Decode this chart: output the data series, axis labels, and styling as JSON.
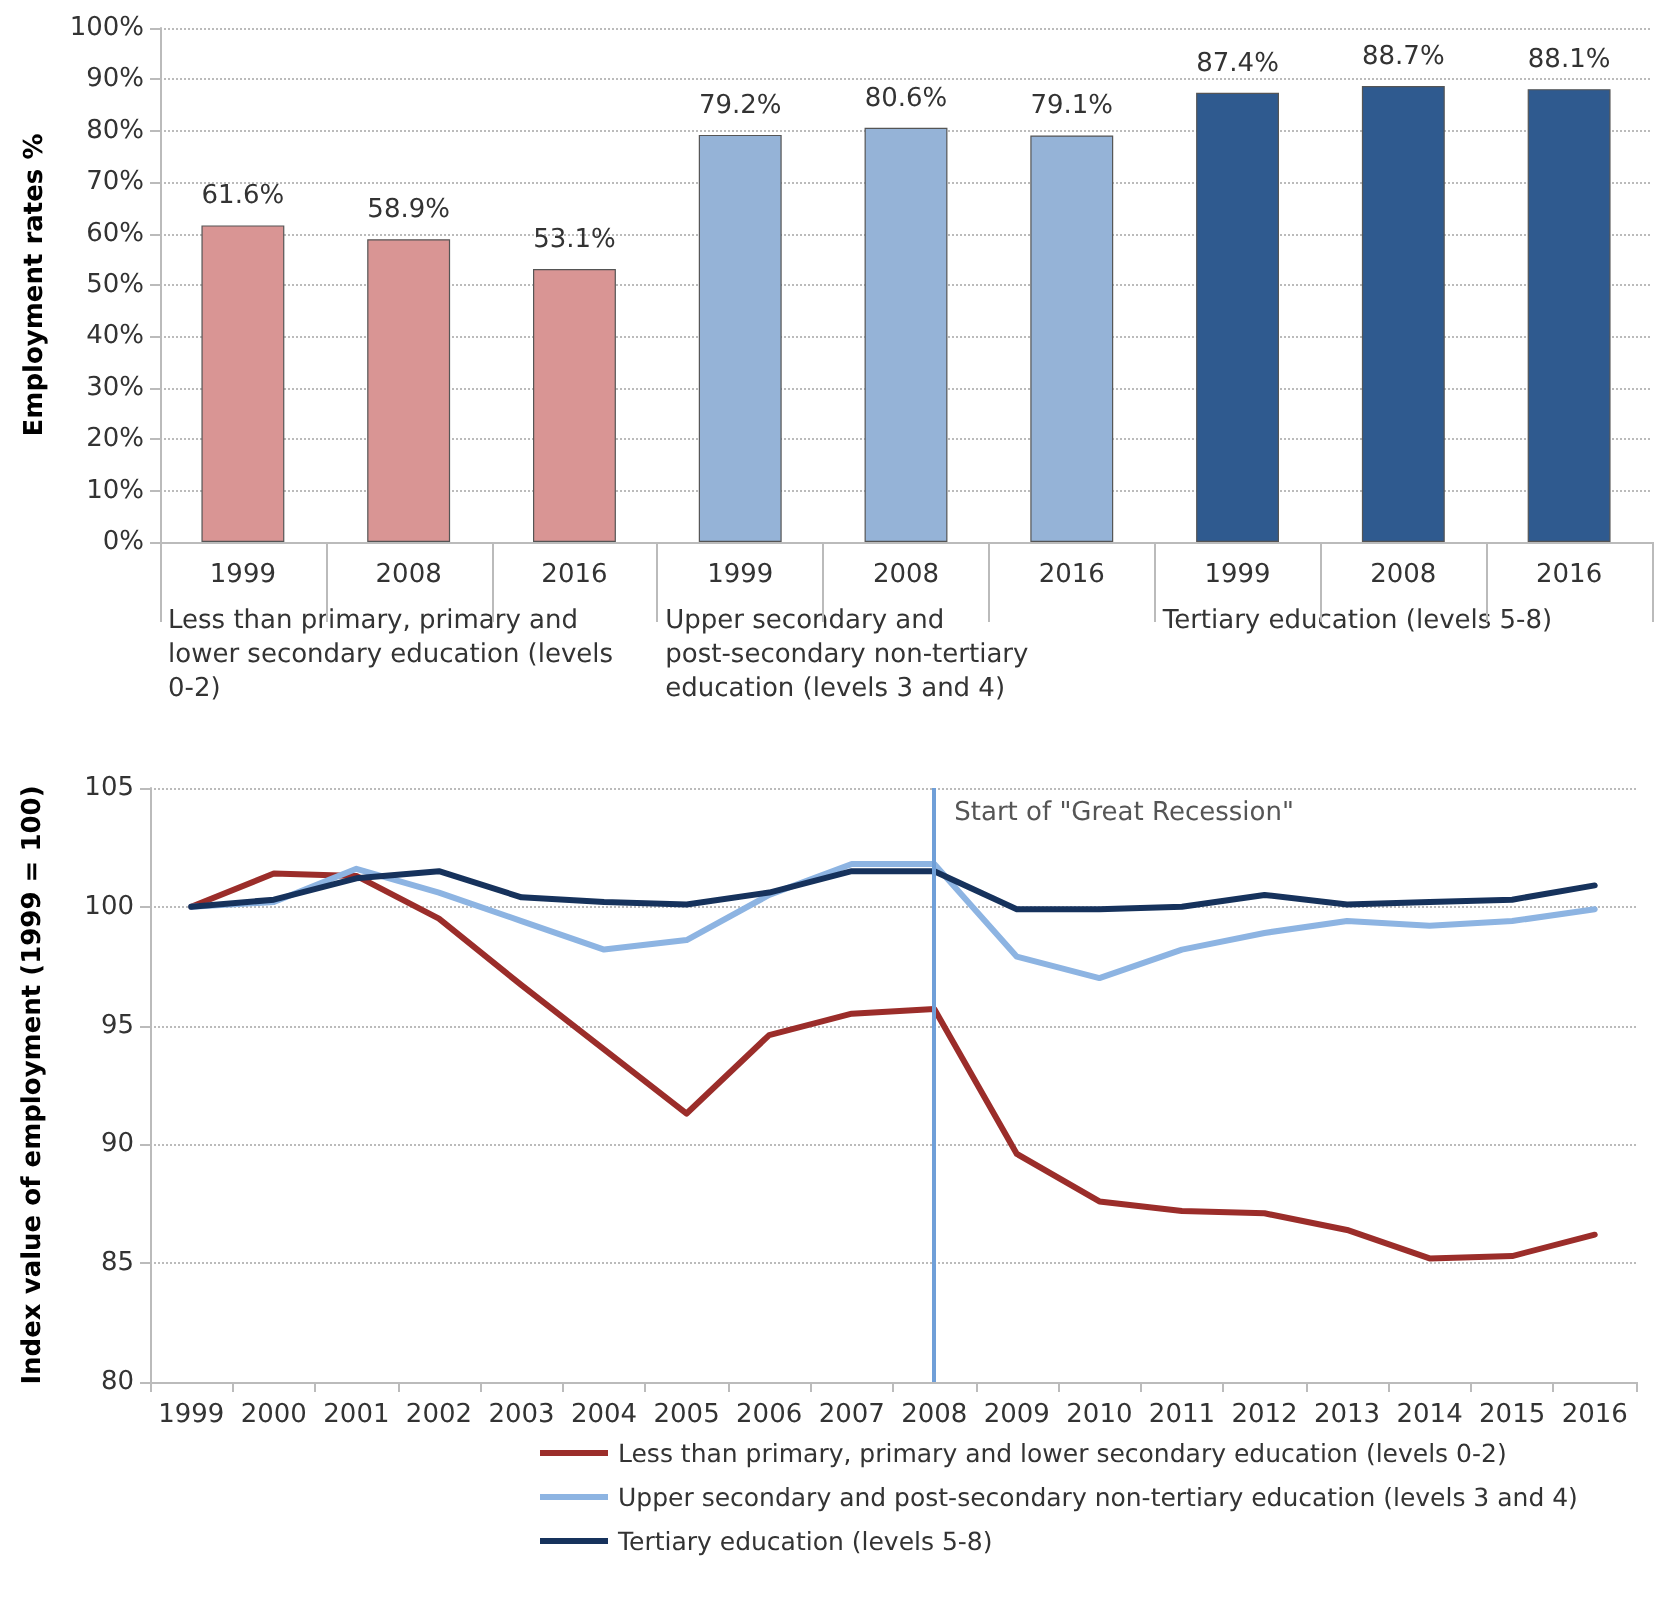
{
  "chart_data": [
    {
      "type": "bar",
      "ylabel": "Employment rates %",
      "categories": [
        "1999",
        "2008",
        "2016",
        "1999",
        "2008",
        "2016",
        "1999",
        "2008",
        "2016"
      ],
      "values": [
        61.6,
        58.9,
        53.1,
        79.2,
        80.6,
        79.1,
        87.4,
        88.7,
        88.1
      ],
      "colors": [
        "#d99594",
        "#d99594",
        "#d99594",
        "#95b3d7",
        "#95b3d7",
        "#95b3d7",
        "#2f5a8f",
        "#2f5a8f",
        "#2f5a8f"
      ],
      "value_labels": [
        "61.6%",
        "58.9%",
        "53.1%",
        "79.2%",
        "80.6%",
        "79.1%",
        "87.4%",
        "88.7%",
        "88.1%"
      ],
      "annotations": [
        "Less than primary, primary and lower secondary education (levels 0-2)",
        "Upper secondary and post-secondary non-tertiary education (levels 3 and 4)",
        "Tertiary education (levels 5-8)"
      ],
      "ylim": [
        0,
        100
      ],
      "yticks": [
        {
          "value": 0,
          "label": "0%"
        },
        {
          "value": 10,
          "label": "10%"
        },
        {
          "value": 20,
          "label": "20%"
        },
        {
          "value": 30,
          "label": "30%"
        },
        {
          "value": 40,
          "label": "40%"
        },
        {
          "value": 50,
          "label": "50%"
        },
        {
          "value": 60,
          "label": "60%"
        },
        {
          "value": 70,
          "label": "70%"
        },
        {
          "value": 80,
          "label": "80%"
        },
        {
          "value": 90,
          "label": "90%"
        },
        {
          "value": 100,
          "label": "100%"
        }
      ],
      "grid": "y"
    },
    {
      "type": "line",
      "ylabel": "Index value of employment (1999 = 100)",
      "categories": [
        "1999",
        "2000",
        "2001",
        "2002",
        "2003",
        "2004",
        "2005",
        "2006",
        "2007",
        "2008",
        "2009",
        "2010",
        "2011",
        "2012",
        "2013",
        "2014",
        "2015",
        "2016"
      ],
      "series": [
        {
          "name": "Less than primary, primary and lower secondary education (levels 0-2)",
          "color": "#9b2d2a",
          "values": [
            100,
            101.4,
            101.3,
            99.5,
            96.7,
            94.0,
            91.3,
            94.6,
            95.5,
            95.7,
            89.6,
            87.6,
            87.2,
            87.1,
            86.4,
            85.2,
            85.3,
            86.2
          ]
        },
        {
          "name": "Upper secondary and post-secondary non-tertiary education (levels 3 and 4)",
          "color": "#8db4e2",
          "values": [
            100,
            100.2,
            101.6,
            100.6,
            99.4,
            98.2,
            98.6,
            100.5,
            101.8,
            101.8,
            97.9,
            97.0,
            98.2,
            98.9,
            99.4,
            99.2,
            99.4,
            99.9
          ]
        },
        {
          "name": "Tertiary education (levels 5-8)",
          "color": "#16325c",
          "values": [
            100,
            100.3,
            101.2,
            101.5,
            100.4,
            100.2,
            100.1,
            100.6,
            101.5,
            101.5,
            99.9,
            99.9,
            100.0,
            100.5,
            100.1,
            100.2,
            100.3,
            100.9
          ]
        }
      ],
      "ref_lines": [
        {
          "axis": "x",
          "value": "2008",
          "label": "Start of \"Great Recession\"",
          "color": "#6f9fd8"
        }
      ],
      "ylim": [
        80,
        105
      ],
      "yticks": [
        80,
        85,
        90,
        95,
        100,
        105
      ],
      "grid": "y",
      "legend": "bottom",
      "marker": "none",
      "line_style": "solid"
    }
  ]
}
